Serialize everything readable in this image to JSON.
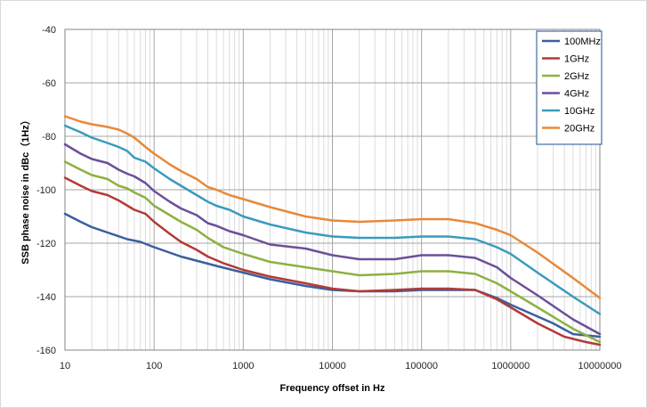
{
  "chart_data": {
    "type": "line",
    "title": "",
    "xlabel": "Frequency offset in Hz",
    "ylabel": "SSB phase noise in dBc（1Hz）",
    "x_scale": "log",
    "xlim": [
      10,
      10000000
    ],
    "ylim": [
      -160,
      -40
    ],
    "x_ticks": [
      10,
      100,
      1000,
      10000,
      100000,
      1000000,
      10000000
    ],
    "x_tick_labels": [
      "10",
      "100",
      "1000",
      "10000",
      "100000",
      "1000000",
      "10000000"
    ],
    "y_ticks": [
      -160,
      -140,
      -120,
      -100,
      -80,
      -60,
      -40
    ],
    "y_tick_labels": [
      "-160",
      "-140",
      "-120",
      "-100",
      "-80",
      "-60",
      "-40"
    ],
    "grid": true,
    "legend_position": "top-right",
    "series": [
      {
        "name": "100MHz",
        "color": "#3a5f9e",
        "x": [
          10,
          15,
          20,
          30,
          50,
          70,
          100,
          200,
          500,
          1000,
          2000,
          5000,
          10000,
          20000,
          50000,
          100000,
          200000,
          400000,
          700000,
          1000000,
          3000000,
          5000000,
          10000000
        ],
        "y": [
          -109,
          -112,
          -114,
          -116,
          -118.5,
          -119.5,
          -121.5,
          -125,
          -128.5,
          -131,
          -133.5,
          -136,
          -137.5,
          -138,
          -138,
          -137.5,
          -137.5,
          -137.5,
          -140.5,
          -143,
          -150,
          -154,
          -155
        ]
      },
      {
        "name": "1GHz",
        "color": "#b33a36",
        "x": [
          10,
          15,
          20,
          30,
          40,
          60,
          80,
          100,
          150,
          200,
          300,
          400,
          600,
          1000,
          2000,
          5000,
          10000,
          20000,
          50000,
          100000,
          200000,
          400000,
          700000,
          1000000,
          2000000,
          4000000,
          7000000,
          10000000
        ],
        "y": [
          -95.5,
          -98.5,
          -100.5,
          -102,
          -104,
          -107.5,
          -109,
          -112,
          -116.5,
          -119.5,
          -122.5,
          -125,
          -127.5,
          -130,
          -132.5,
          -135,
          -137,
          -138,
          -137.5,
          -137,
          -137,
          -137.5,
          -141,
          -144,
          -150,
          -155,
          -157,
          -158
        ]
      },
      {
        "name": "2GHz",
        "color": "#8db141",
        "x": [
          10,
          15,
          20,
          30,
          40,
          50,
          60,
          80,
          100,
          150,
          200,
          300,
          400,
          600,
          1000,
          2000,
          5000,
          10000,
          20000,
          50000,
          100000,
          200000,
          400000,
          700000,
          1000000,
          2000000,
          5000000,
          10000000
        ],
        "y": [
          -89.5,
          -92.5,
          -94.5,
          -96,
          -98.5,
          -99.5,
          -101,
          -103,
          -106,
          -109.5,
          -112,
          -115,
          -118,
          -121.5,
          -124,
          -127,
          -129,
          -130.5,
          -132,
          -131.5,
          -130.5,
          -130.5,
          -131.5,
          -135,
          -138,
          -144,
          -152,
          -157
        ]
      },
      {
        "name": "4GHz",
        "color": "#6b4f9b",
        "x": [
          10,
          15,
          20,
          30,
          40,
          50,
          60,
          80,
          100,
          150,
          200,
          300,
          400,
          500,
          700,
          1000,
          2000,
          5000,
          10000,
          20000,
          50000,
          100000,
          200000,
          400000,
          700000,
          1000000,
          2000000,
          5000000,
          10000000
        ],
        "y": [
          -83,
          -86.5,
          -88.5,
          -90,
          -92.5,
          -94,
          -95,
          -97.5,
          -100.5,
          -104.5,
          -107,
          -109.5,
          -112.5,
          -113.5,
          -115.5,
          -117,
          -120.5,
          -122,
          -124.5,
          -126,
          -126,
          -124.5,
          -124.5,
          -125.5,
          -129,
          -133,
          -139.5,
          -148.5,
          -154
        ]
      },
      {
        "name": "10GHz",
        "color": "#3a9bbd",
        "x": [
          10,
          15,
          20,
          30,
          40,
          50,
          60,
          80,
          100,
          150,
          200,
          300,
          400,
          500,
          700,
          1000,
          2000,
          5000,
          10000,
          20000,
          50000,
          100000,
          200000,
          400000,
          700000,
          1000000,
          2000000,
          5000000,
          10000000
        ],
        "y": [
          -76,
          -78.5,
          -80.5,
          -82.5,
          -84,
          -85.5,
          -88,
          -89.5,
          -92,
          -96,
          -98.5,
          -102,
          -104.5,
          -106,
          -107.5,
          -110,
          -113,
          -116,
          -117.5,
          -118,
          -118,
          -117.5,
          -117.5,
          -118.5,
          -121.5,
          -124,
          -131,
          -140,
          -146.5
        ]
      },
      {
        "name": "20GHz",
        "color": "#e8893a",
        "x": [
          10,
          15,
          20,
          30,
          40,
          50,
          60,
          80,
          100,
          150,
          200,
          300,
          400,
          500,
          700,
          1000,
          2000,
          5000,
          10000,
          20000,
          50000,
          100000,
          200000,
          400000,
          700000,
          1000000,
          2000000,
          5000000,
          10000000
        ],
        "y": [
          -72.5,
          -74.5,
          -75.5,
          -76.5,
          -77.5,
          -79,
          -80.5,
          -84,
          -86.5,
          -90.5,
          -93,
          -96,
          -99,
          -100,
          -102,
          -103.5,
          -106.5,
          -110,
          -111.5,
          -112,
          -111.5,
          -111,
          -111,
          -112.5,
          -115,
          -117,
          -123.5,
          -133,
          -140.5
        ]
      }
    ]
  }
}
